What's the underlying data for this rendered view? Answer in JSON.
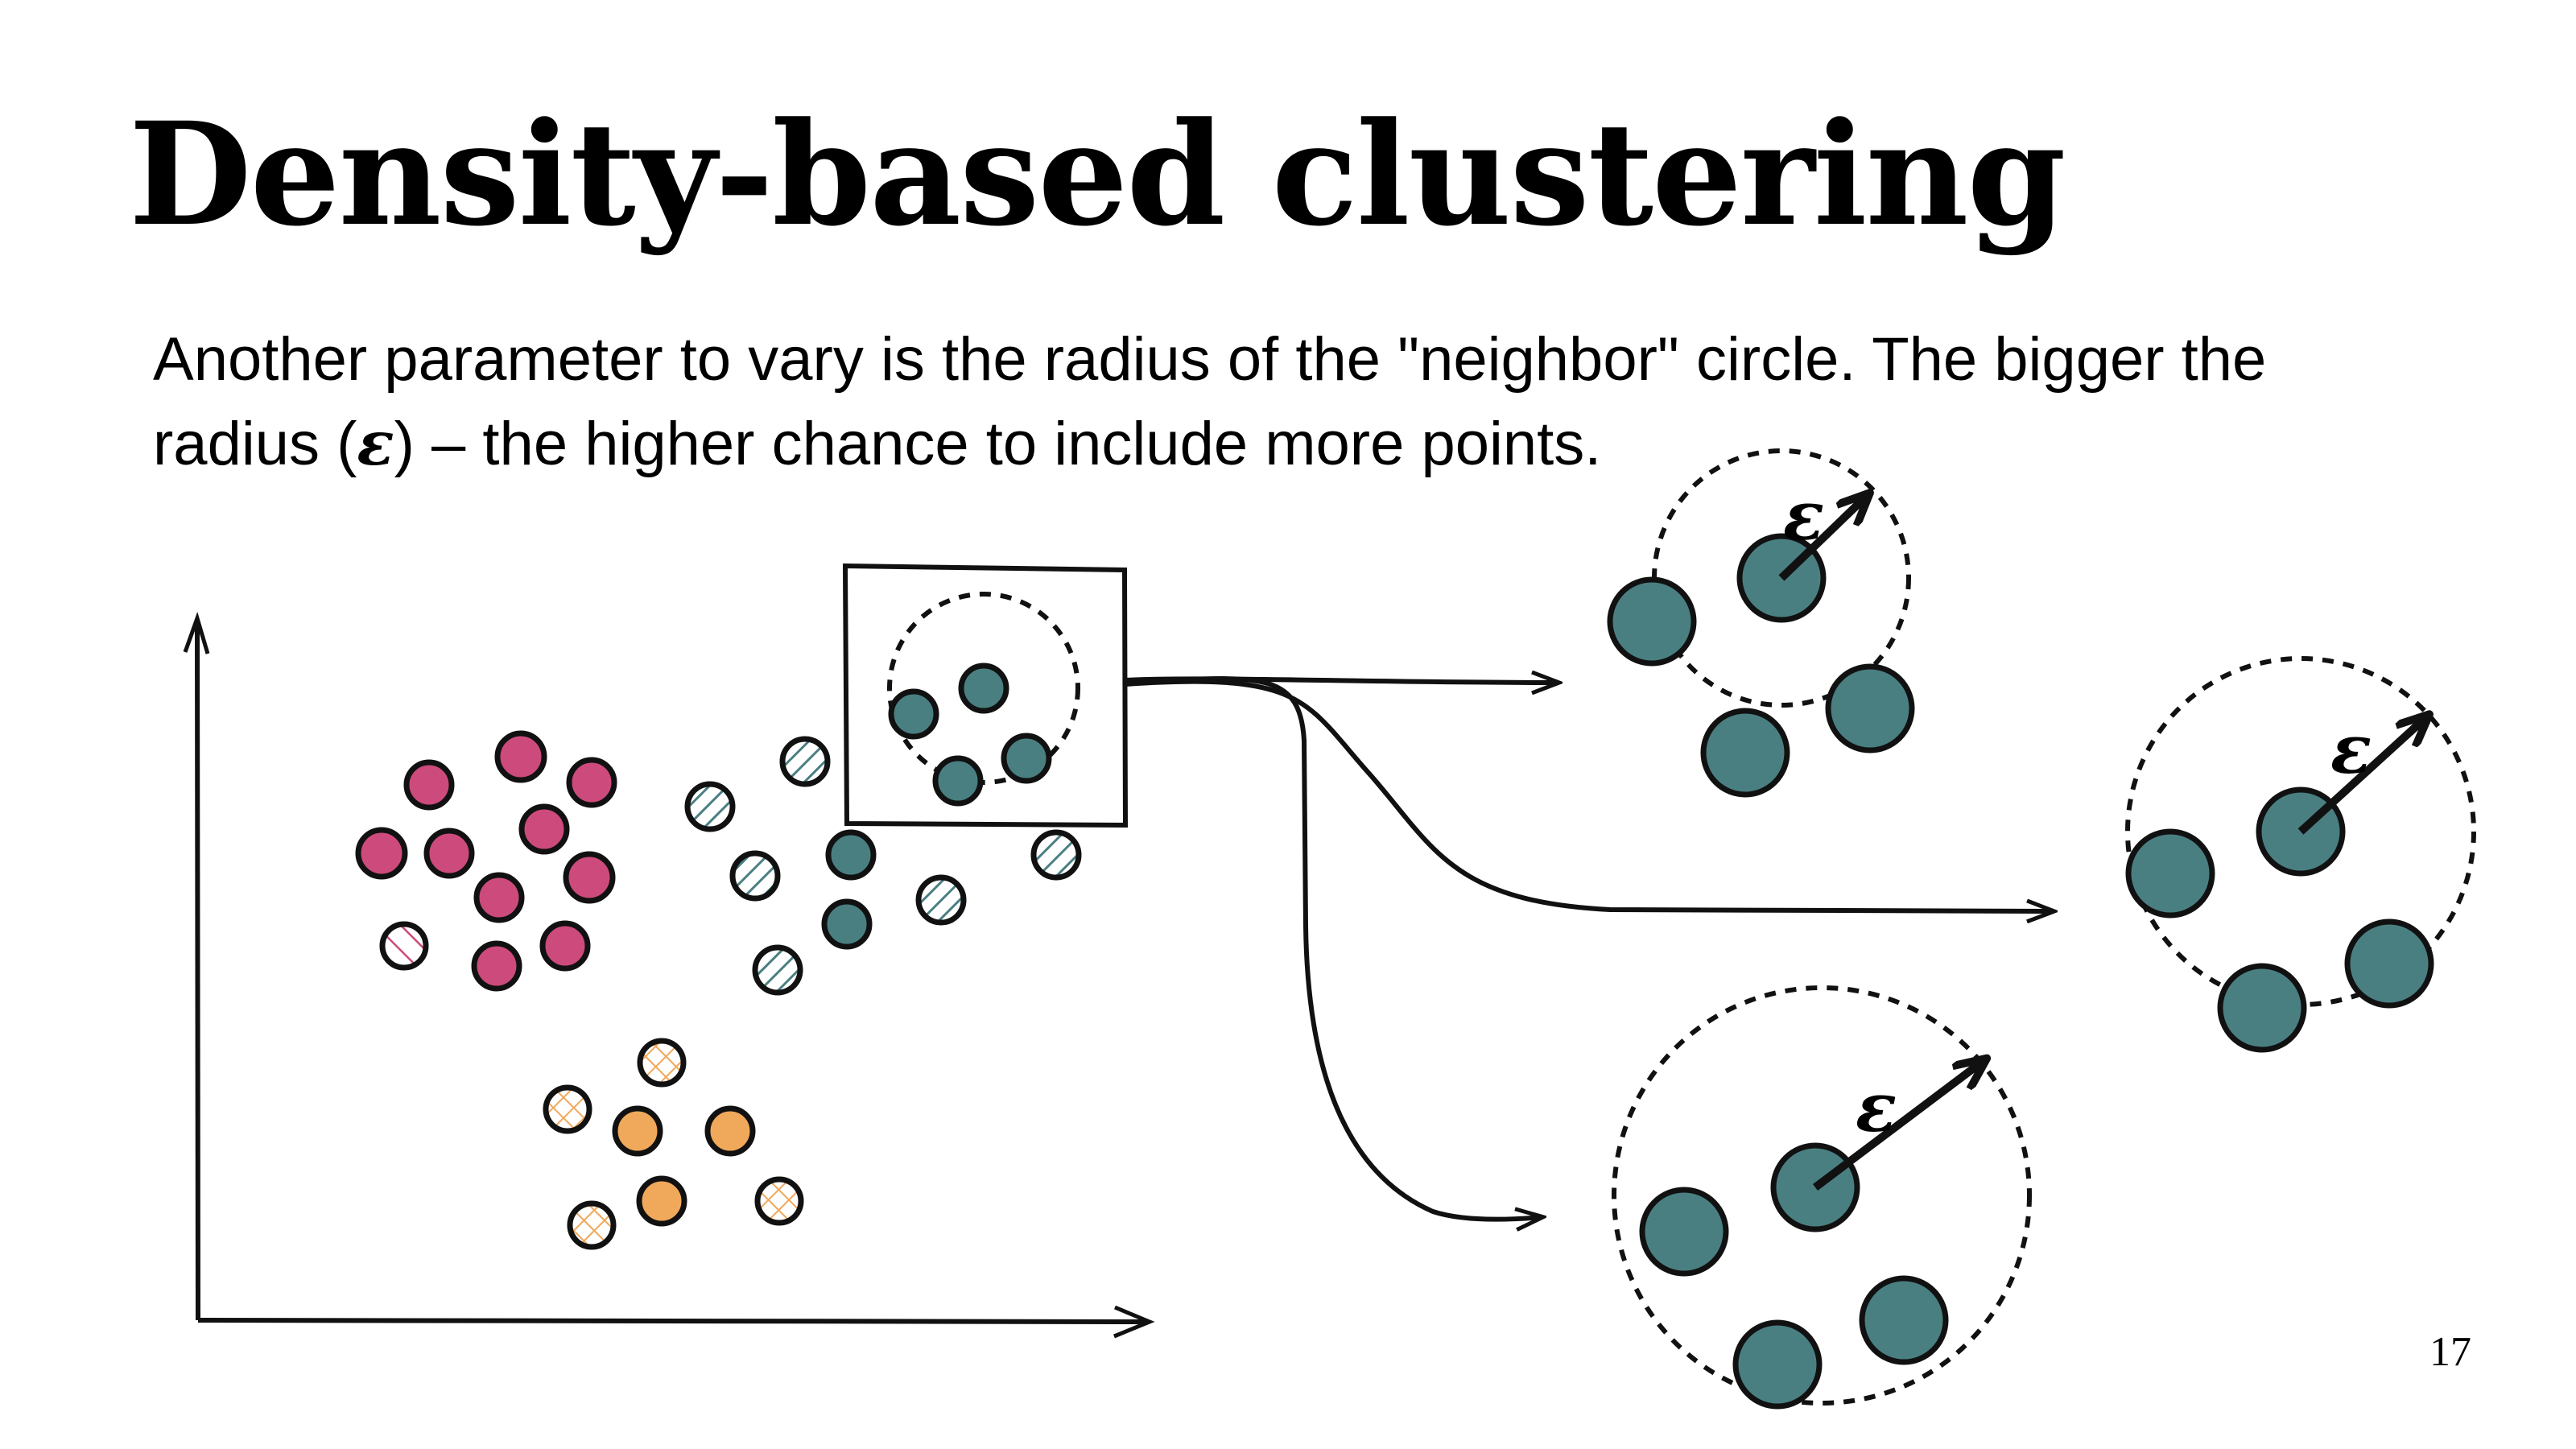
{
  "title": "Density-based clustering",
  "body": {
    "line1": "Another parameter to vary is the radius of the \"neighbor\" circle. The bigger the",
    "line2_before": "radius (",
    "epsilon": "ε",
    "line2_after": ") – the higher chance to include more points."
  },
  "page_number": "17",
  "radius_labels": [
    "ε",
    "ε",
    "ε"
  ],
  "colors": {
    "teal": "#4a7f82",
    "pink": "#cc4a7c",
    "orange": "#f0a85a",
    "ink": "#111111"
  }
}
